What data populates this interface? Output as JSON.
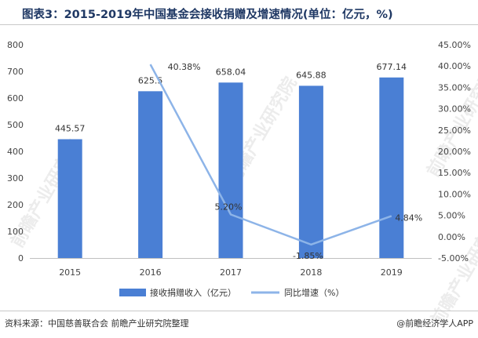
{
  "title": "图表3：2015-2019年中国基金会接收捐赠及增速情况(单位：亿元，%)",
  "footer": {
    "source": "资料来源：中国慈善联合会 前瞻产业研究院整理",
    "brand": "@前瞻经济学人APP"
  },
  "watermark": "前瞻产业研究院",
  "colors": {
    "bar": "#4a7fd4",
    "line": "#8db4e8",
    "title": "#1f3864"
  },
  "chart_data": {
    "type": "bar",
    "categories": [
      "2015",
      "2016",
      "2017",
      "2018",
      "2019"
    ],
    "series": [
      {
        "name": "接收捐赠收入（亿元）",
        "type": "bar",
        "axis": "left",
        "values": [
          445.57,
          625.5,
          658.04,
          645.88,
          677.14
        ],
        "labels": [
          "445.57",
          "625.5",
          "658.04",
          "645.88",
          "677.14"
        ]
      },
      {
        "name": "同比增速（%）",
        "type": "line",
        "axis": "right",
        "values": [
          null,
          40.38,
          5.2,
          -1.85,
          4.84
        ],
        "labels": [
          "",
          "40.38%",
          "5.20%",
          "-1.85%",
          "4.84%"
        ]
      }
    ],
    "y_left": {
      "min": 0,
      "max": 800,
      "step": 100,
      "ticks": [
        "0",
        "100",
        "200",
        "300",
        "400",
        "500",
        "600",
        "700",
        "800"
      ]
    },
    "y_right": {
      "min": -5,
      "max": 45,
      "step": 5,
      "ticks": [
        "-5.00%",
        "0.00%",
        "5.00%",
        "10.00%",
        "15.00%",
        "20.00%",
        "25.00%",
        "30.00%",
        "35.00%",
        "40.00%",
        "45.00%"
      ]
    },
    "grid": false,
    "legend_position": "bottom"
  }
}
